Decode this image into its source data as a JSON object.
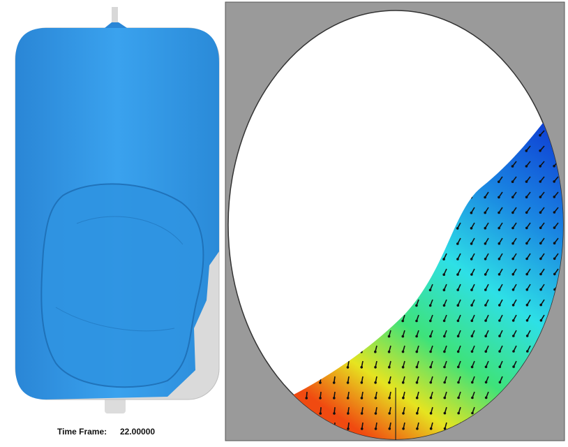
{
  "caption": {
    "label": "Time Frame:",
    "value": "22.00000"
  }
}
